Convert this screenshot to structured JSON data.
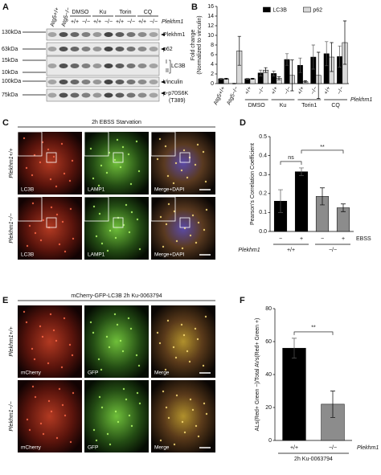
{
  "panel_labels": [
    "A",
    "B",
    "C",
    "D",
    "E",
    "F"
  ],
  "blot": {
    "lane_headers": [
      "Atg5+/+",
      "Atg5−/−"
    ],
    "treatments": [
      "DMSO",
      "Ku",
      "Torin",
      "CQ"
    ],
    "genotypes": [
      "+/+",
      "−/−",
      "+/+",
      "−/−",
      "+/+",
      "−/−",
      "+/+",
      "−/−"
    ],
    "genotype_label": "Plekhm1",
    "markers": [
      "130kDa",
      "63kDa",
      "15kDa",
      "10kDa",
      "100kDa",
      "75kDa"
    ],
    "band_labels": [
      "Plekhm1",
      "p62",
      "I",
      "II",
      "LC3B",
      "Vinculin",
      "p-p70S6K",
      "(T389)"
    ]
  },
  "microscopy_c": {
    "title": "2h EBSS Starvation",
    "rows": [
      "Plekhm1+/+",
      "Plekhm1−/−"
    ],
    "channels": [
      "LC3B",
      "LAMP1",
      "Merge+DAPI"
    ]
  },
  "microscopy_e": {
    "title": "mCherry-GFP-LC3B 2h Ku-0063794",
    "rows": [
      "Plekhm1+/+",
      "Plekhm1−/−"
    ],
    "channels": [
      "mCherry",
      "GFP",
      "Merge"
    ]
  },
  "chart_data": [
    {
      "type": "bar",
      "y_label": [
        "Fold change",
        "(Normalized to vinculin)"
      ],
      "categories": [
        "Atg5+/+",
        "Atg5−/−",
        "+/+",
        "−/−",
        "+/+",
        "−/−",
        "+/+",
        "−/−",
        "+/+",
        "−/−"
      ],
      "group_labels": [
        "DMSO",
        "Ku",
        "Torin1",
        "CQ"
      ],
      "group_title": "Plekhm1",
      "series": [
        {
          "name": "LC3B",
          "color": "#000000",
          "values": [
            1,
            0,
            1,
            2.2,
            2.1,
            5.0,
            3.8,
            5.5,
            6.2,
            5.6
          ],
          "errors": [
            0.1,
            0.1,
            0.1,
            0.6,
            0.5,
            1.2,
            1.5,
            2.5,
            2.5,
            2.2
          ]
        },
        {
          "name": "p62",
          "color": "#d9d9d9",
          "values": [
            1,
            6.8,
            1,
            2.8,
            1.1,
            1.7,
            0.4,
            1.7,
            5.5,
            8.5
          ],
          "errors": [
            0.1,
            3.0,
            0.1,
            0.5,
            0.3,
            3.2,
            0.2,
            4.8,
            3.0,
            4.5
          ]
        }
      ],
      "ylim": [
        0,
        16
      ],
      "yticks": [
        0,
        2,
        4,
        6,
        8,
        10,
        12,
        14,
        16
      ],
      "legend": "top-right"
    },
    {
      "type": "bar",
      "y_label": [
        "Pearson's Correlation Coefficient"
      ],
      "categories": [
        "−",
        "+",
        "−",
        "+"
      ],
      "x_label": "EBSS",
      "group_labels": [
        "+/+",
        "−/−"
      ],
      "group_title": "Plekhm1",
      "series": [
        {
          "colors": [
            "#000000",
            "#000000",
            "#8c8c8c",
            "#8c8c8c"
          ],
          "values": [
            0.16,
            0.315,
            0.185,
            0.125
          ],
          "errors": [
            0.06,
            0.02,
            0.045,
            0.02
          ]
        }
      ],
      "ylim": [
        0,
        0.5
      ],
      "yticks": [
        {
          "value": 0,
          "label": "0.0"
        },
        0.1,
        0.2,
        0.3,
        0.4,
        0.5
      ],
      "annotations": [
        "ns",
        "**"
      ]
    },
    {
      "type": "bar",
      "y_label": [
        "ALs(Red+ Green −)/Total AVs(Red+ Green +)"
      ],
      "categories": [
        "+/+",
        "−/−"
      ],
      "group_title": "Plekhm1",
      "x_label": "2h Ku-0063794",
      "series": [
        {
          "colors": [
            "#000000",
            "#8c8c8c"
          ],
          "values": [
            56,
            22
          ],
          "errors": [
            6,
            8
          ]
        }
      ],
      "ylim": [
        0,
        80
      ],
      "yticks": [
        0,
        20,
        40,
        60,
        80
      ],
      "annotations": [
        "**"
      ]
    }
  ]
}
